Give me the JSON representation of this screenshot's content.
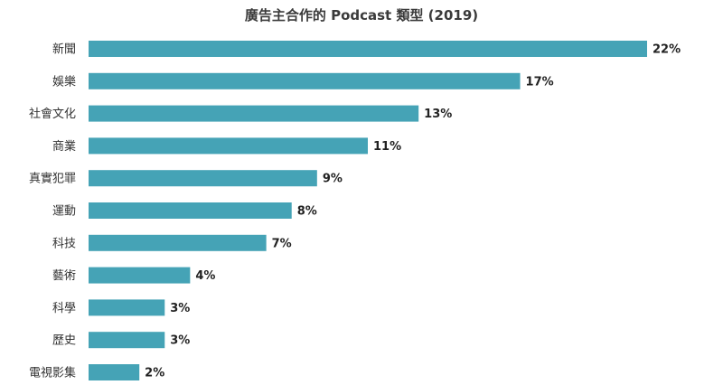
{
  "chart_data": {
    "type": "bar",
    "orientation": "horizontal",
    "title": "廣告主合作的 Podcast 類型 (2019)",
    "categories": [
      "新聞",
      "娛樂",
      "社會文化",
      "商業",
      "真實犯罪",
      "運動",
      "科技",
      "藝術",
      "科學",
      "歷史",
      "電視影集"
    ],
    "values": [
      22,
      17,
      13,
      11,
      9,
      8,
      7,
      4,
      3,
      3,
      2
    ],
    "value_labels": [
      "22%",
      "17%",
      "13%",
      "11%",
      "9%",
      "8%",
      "7%",
      "4%",
      "3%",
      "3%",
      "2%"
    ],
    "xlim": [
      0,
      22
    ],
    "grid": false,
    "bar_color": "#45a3b6"
  }
}
